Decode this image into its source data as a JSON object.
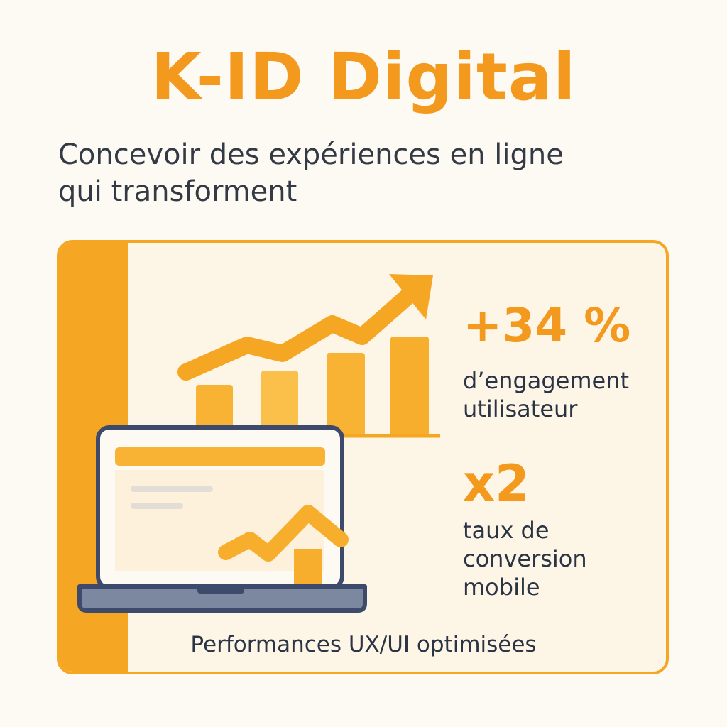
{
  "header": {
    "brand": "K-ID Digital",
    "tagline_line1": "Concevoir des expériences en ligne",
    "tagline_line2": "qui transforment"
  },
  "stats": [
    {
      "value": "+34 %",
      "label_line1": "d’engagement",
      "label_line2": "utilisateur"
    },
    {
      "value": "x2",
      "label_line1": "taux de",
      "label_line2": "conversion",
      "label_line3": "mobile"
    }
  ],
  "footer": {
    "text": "Performances UX/UI optimisées"
  },
  "illustration": {
    "icon": "growth-chart-laptop-icon",
    "accent_color": "#f5a623",
    "dark_color": "#3d4a6b"
  },
  "colors": {
    "brand_orange": "#f39a1e",
    "card_background": "#fdf5e6",
    "text_dark": "#2b3445",
    "page_background": "#fdfaf3"
  }
}
